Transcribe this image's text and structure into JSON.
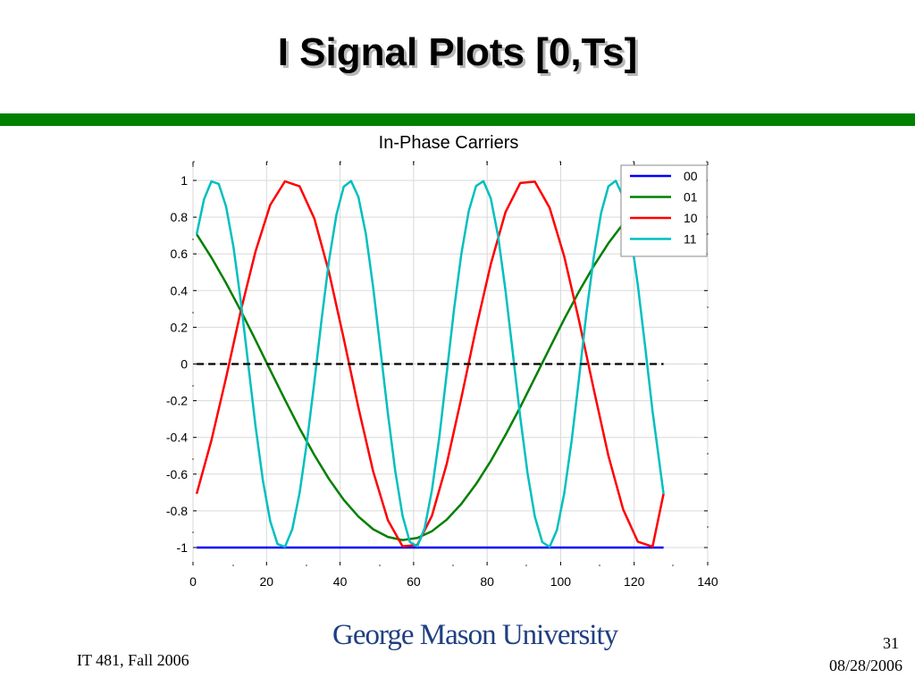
{
  "slide": {
    "title": "I Signal Plots [0,Ts]",
    "logo_text": "George Mason University",
    "footer_left": "IT 481, Fall 2006",
    "page_number": "31",
    "date": "08/28/2006",
    "accent_color": "#008000"
  },
  "chart_data": {
    "type": "line",
    "title": "In-Phase Carriers",
    "xlabel": "",
    "ylabel": "",
    "xlim": [
      0,
      140
    ],
    "ylim": [
      -1,
      1
    ],
    "xticks": [
      0,
      20,
      40,
      60,
      80,
      100,
      120,
      140
    ],
    "yticks": [
      1,
      0.8,
      0.6,
      0.4,
      0.2,
      0,
      -0.2,
      -0.4,
      -0.6,
      -0.8,
      -1
    ],
    "grid": true,
    "legend_position": "top-right",
    "series": [
      {
        "name": "00",
        "color": "#0000ff",
        "x": [
          1,
          128
        ],
        "y": [
          -1,
          -1
        ]
      },
      {
        "name": "01",
        "color": "#008000",
        "x": [
          1,
          5,
          9,
          13,
          17,
          21,
          25,
          29,
          33,
          37,
          41,
          45,
          49,
          53,
          57,
          61,
          65,
          69,
          73,
          77,
          81,
          85,
          89,
          93,
          97,
          101,
          105,
          109,
          113,
          117,
          121,
          125,
          128
        ],
        "y": [
          0.707,
          0.58,
          0.441,
          0.29,
          0.131,
          -0.033,
          -0.195,
          -0.351,
          -0.496,
          -0.627,
          -0.74,
          -0.831,
          -0.9,
          -0.942,
          -0.959,
          -0.948,
          -0.911,
          -0.848,
          -0.762,
          -0.654,
          -0.528,
          -0.387,
          -0.235,
          -0.075,
          0.086,
          0.245,
          0.395,
          0.534,
          0.658,
          0.764,
          0.848,
          0.909,
          0.943
        ]
      },
      {
        "name": "10",
        "color": "#ff0000",
        "x": [
          1,
          5,
          9,
          13,
          17,
          21,
          25,
          29,
          33,
          37,
          41,
          45,
          49,
          53,
          57,
          61,
          65,
          69,
          73,
          77,
          81,
          85,
          89,
          93,
          97,
          101,
          105,
          109,
          113,
          117,
          121,
          125,
          128
        ],
        "y": [
          -0.707,
          -0.416,
          -0.075,
          0.29,
          0.612,
          0.866,
          0.995,
          0.968,
          0.792,
          0.5,
          0.138,
          -0.237,
          -0.585,
          -0.851,
          -0.993,
          -0.986,
          -0.827,
          -0.545,
          -0.185,
          0.195,
          0.545,
          0.827,
          0.986,
          0.993,
          0.851,
          0.585,
          0.237,
          -0.138,
          -0.5,
          -0.792,
          -0.968,
          -0.995,
          -0.707
        ]
      },
      {
        "name": "11",
        "color": "#00bfbf",
        "x": [
          1,
          3,
          5,
          7,
          9,
          11,
          13,
          15,
          17,
          19,
          21,
          23,
          25,
          27,
          29,
          31,
          33,
          35,
          37,
          39,
          41,
          43,
          45,
          47,
          49,
          51,
          53,
          55,
          57,
          59,
          61,
          63,
          65,
          67,
          69,
          71,
          73,
          75,
          77,
          79,
          81,
          83,
          85,
          87,
          89,
          91,
          93,
          95,
          97,
          99,
          101,
          103,
          105,
          107,
          109,
          111,
          113,
          115,
          117,
          119,
          121,
          123,
          125,
          128
        ],
        "y": [
          0.707,
          0.897,
          0.995,
          0.981,
          0.858,
          0.637,
          0.342,
          0.003,
          -0.336,
          -0.634,
          -0.856,
          -0.981,
          -0.996,
          -0.9,
          -0.702,
          -0.425,
          -0.098,
          0.246,
          0.563,
          0.813,
          0.966,
          0.997,
          0.91,
          0.71,
          0.419,
          0.078,
          -0.27,
          -0.582,
          -0.827,
          -0.97,
          -0.993,
          -0.895,
          -0.687,
          -0.397,
          -0.052,
          0.297,
          0.6,
          0.833,
          0.97,
          0.996,
          0.901,
          0.695,
          0.401,
          0.06,
          -0.289,
          -0.595,
          -0.833,
          -0.971,
          -0.996,
          -0.904,
          -0.703,
          -0.416,
          -0.078,
          0.274,
          0.582,
          0.823,
          0.968,
          0.998,
          0.911,
          0.714,
          0.43,
          0.091,
          -0.258,
          -0.707
        ]
      },
      {
        "name": "",
        "color": "#000000",
        "dashed": true,
        "x": [
          1,
          128
        ],
        "y": [
          0,
          0
        ]
      }
    ]
  }
}
